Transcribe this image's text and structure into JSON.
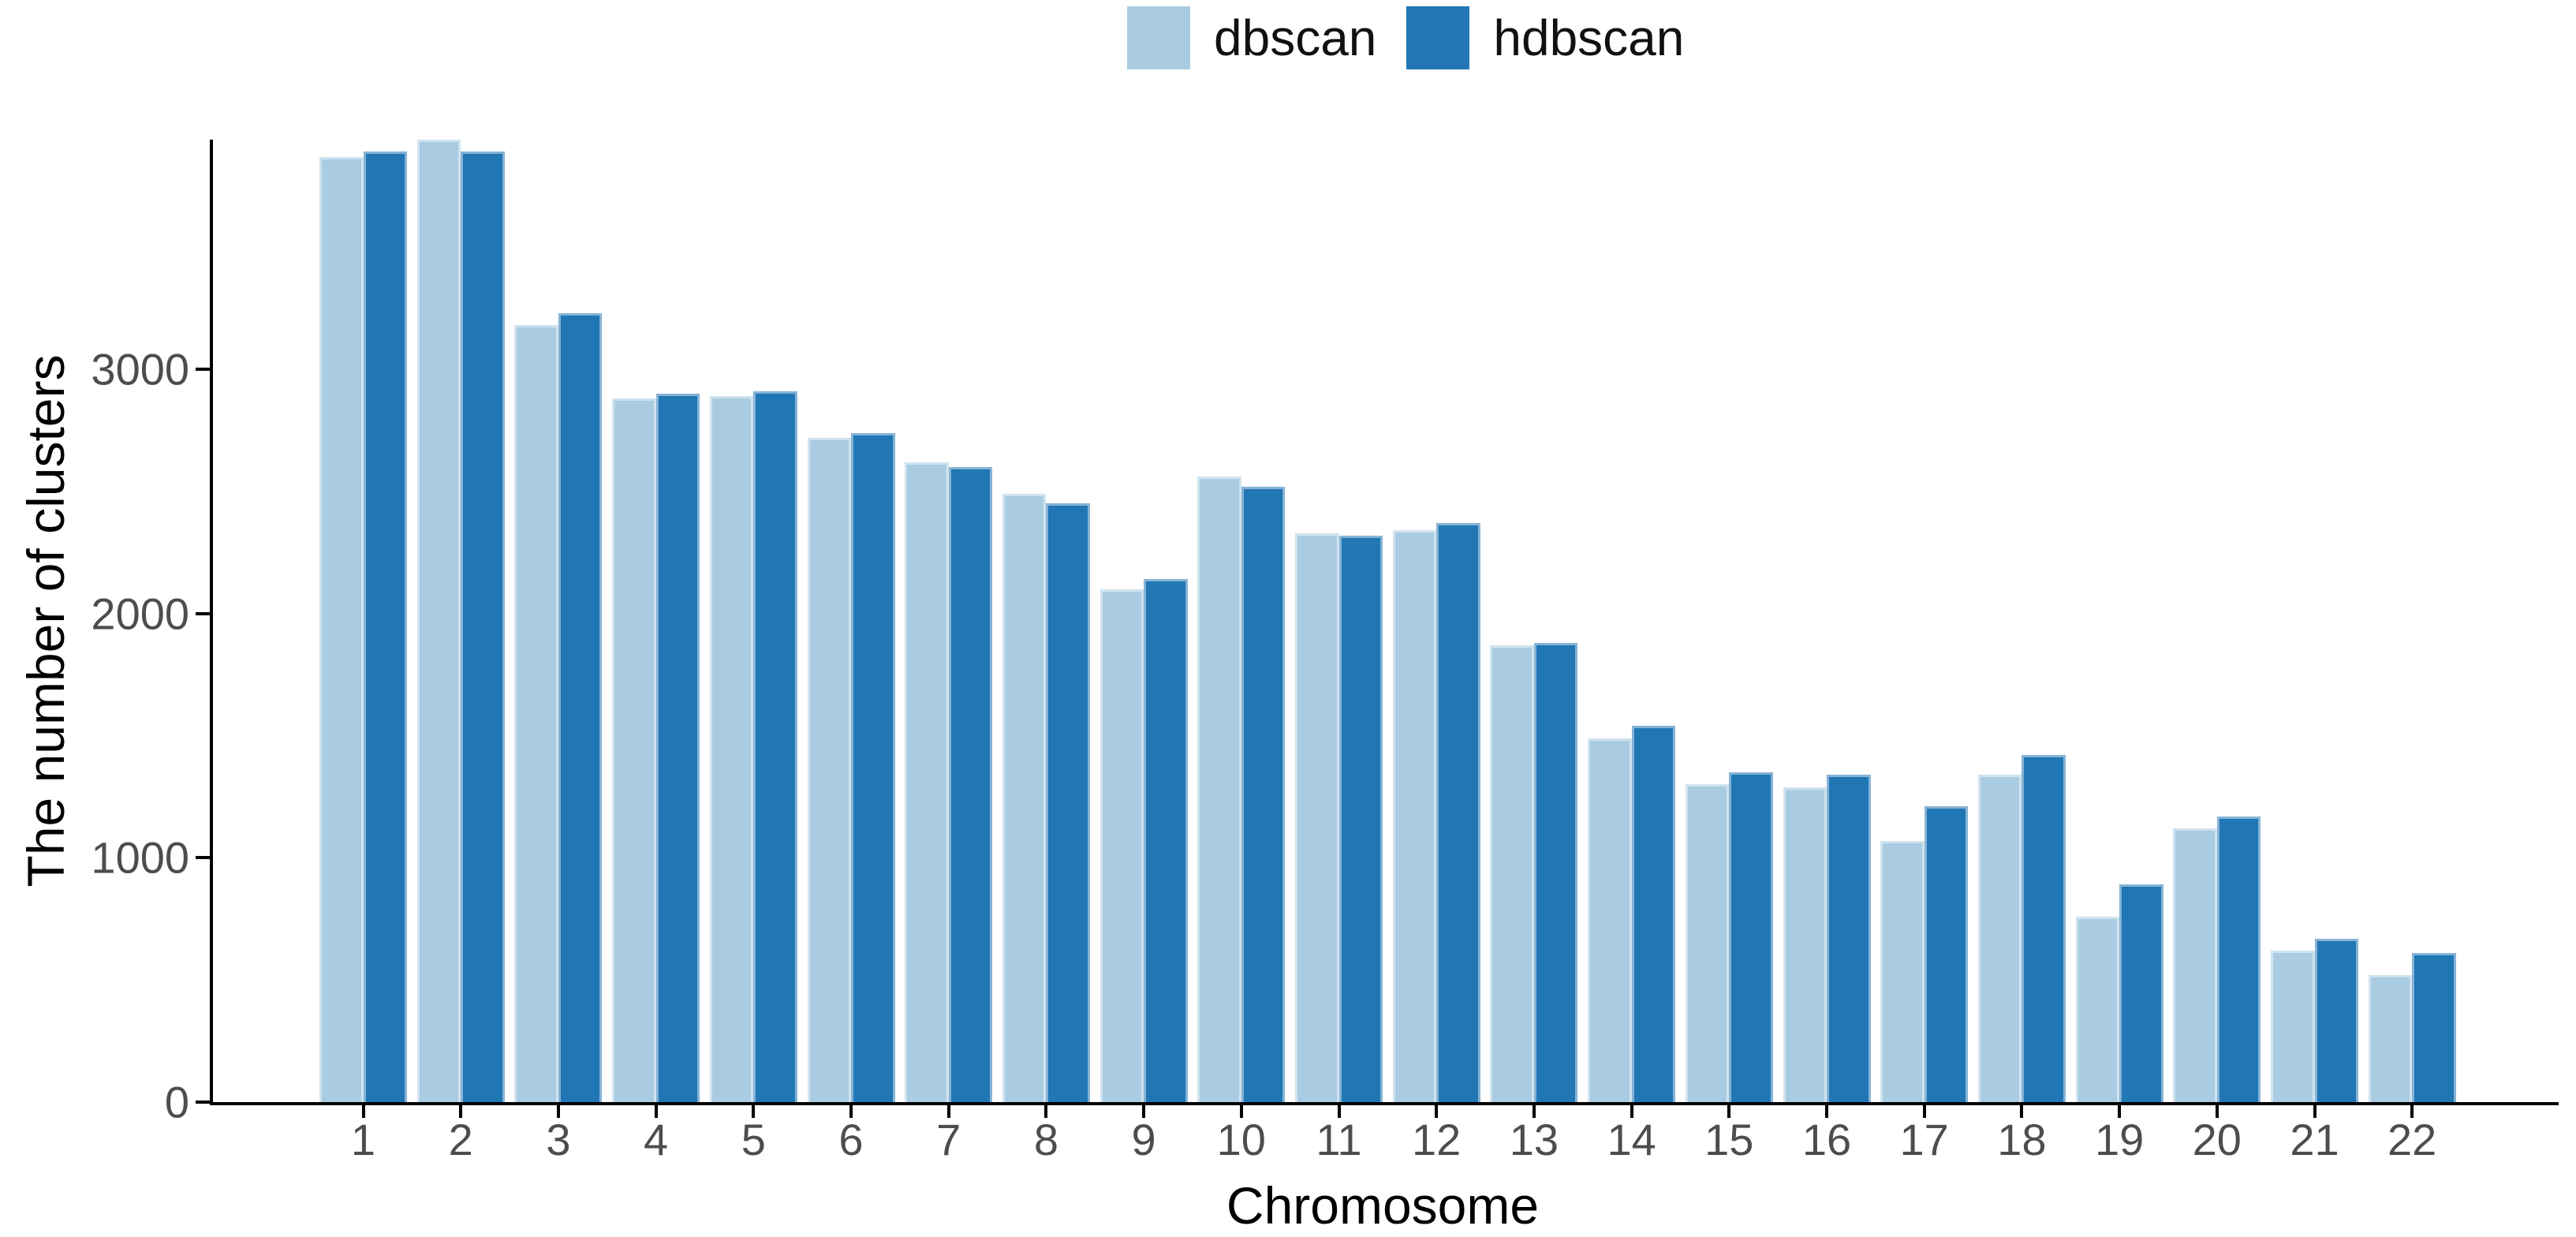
{
  "figure": {
    "background_color": "#ffffff",
    "axis_line_color": "#000000",
    "tick_label_color": "#4d4d4d"
  },
  "legend": {
    "position": "top-center",
    "items": [
      {
        "label": "dbscan",
        "color": "#a9cce2"
      },
      {
        "label": "hdbscan",
        "color": "#2176b4"
      }
    ]
  },
  "axes": {
    "xlabel": "Chromosome",
    "ylabel": "The number of clusters",
    "y_tick_labels": [
      "0",
      "1000",
      "2000",
      "3000"
    ],
    "y_tick_values": [
      0,
      1000,
      2000,
      3000
    ]
  },
  "chart_data": {
    "type": "bar",
    "title": "",
    "xlabel": "Chromosome",
    "ylabel": "The number of clusters",
    "grid": false,
    "legend_position": "top-center",
    "ylim": [
      0,
      3940
    ],
    "categories": [
      "1",
      "2",
      "3",
      "4",
      "5",
      "6",
      "7",
      "8",
      "9",
      "10",
      "11",
      "12",
      "13",
      "14",
      "15",
      "16",
      "17",
      "18",
      "19",
      "20",
      "21",
      "22"
    ],
    "series": [
      {
        "name": "dbscan",
        "color": "#a9cce2",
        "values": [
          3870,
          3940,
          3180,
          2880,
          2890,
          2720,
          2620,
          2490,
          2100,
          2560,
          2330,
          2340,
          1870,
          1490,
          1300,
          1290,
          1070,
          1340,
          760,
          1120,
          620,
          520
        ]
      },
      {
        "name": "hdbscan",
        "color": "#2176b4",
        "values": [
          3890,
          3890,
          3230,
          2900,
          2910,
          2740,
          2600,
          2450,
          2140,
          2520,
          2320,
          2370,
          1880,
          1540,
          1350,
          1340,
          1210,
          1420,
          890,
          1170,
          670,
          610
        ]
      }
    ]
  }
}
